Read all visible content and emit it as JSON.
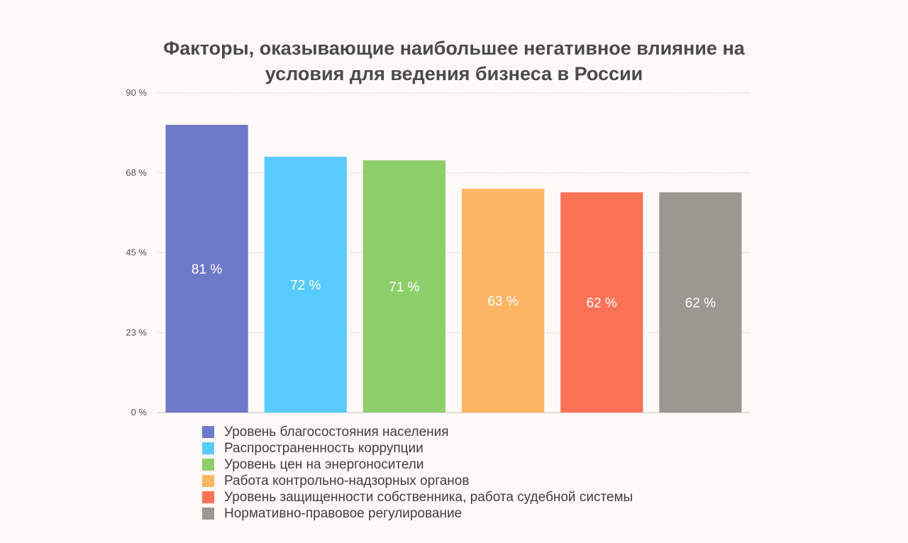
{
  "chart_data": {
    "type": "bar",
    "title_line1": "Факторы, оказывающие наибольшее негативное влияние на",
    "title_line2": "условия для ведения бизнеса в России",
    "categories": [
      "Уровень благосостояния населения",
      "Распространенность коррупции",
      "Уровень цен на энергоносители",
      "Работа контрольно-надзорных органов",
      "Уровень защищенности собственника, работа судебной системы",
      "Нормативно-правовое регулирование"
    ],
    "values": [
      81,
      72,
      71,
      63,
      62,
      62
    ],
    "data_labels": [
      "81 %",
      "72 %",
      "71 %",
      "63 %",
      "62 %",
      "62 %"
    ],
    "colors": [
      "#6f79c9",
      "#58cbfd",
      "#8ecf6c",
      "#fdb664",
      "#fd7256",
      "#9b9791"
    ],
    "ylim": [
      0,
      90
    ],
    "yticks": [
      0,
      22.5,
      45,
      67.5,
      90
    ],
    "ytick_labels": [
      "0 %",
      "23 %",
      "45 %",
      "68 %",
      "90 %"
    ],
    "grid": true,
    "legend_position": "bottom"
  }
}
